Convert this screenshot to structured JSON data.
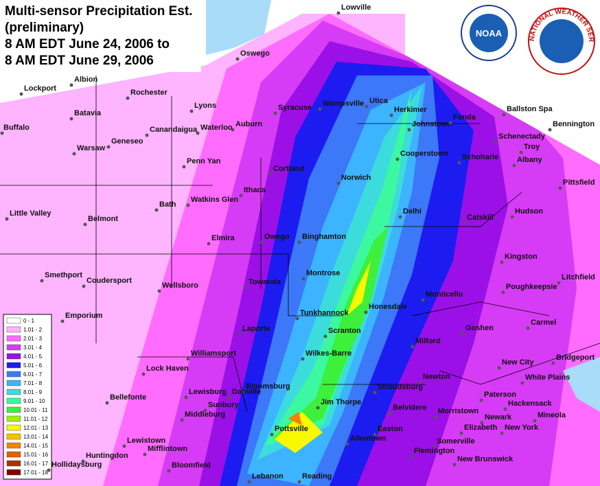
{
  "title": [
    "Multi-sensor Precipitation Est.",
    "(preliminary)",
    "8 AM EDT June 24, 2006 to",
    "8 AM EDT June 29, 2006"
  ],
  "logos": {
    "noaa": "NOAA",
    "nws": "NATIONAL WEATHER SERVICE"
  },
  "legend": [
    {
      "label": "0 - 1",
      "color": "#ffffff"
    },
    {
      "label": "1.01 - 2",
      "color": "#ffb4ff"
    },
    {
      "label": "2.01 - 3",
      "color": "#ff6cff"
    },
    {
      "label": "3.01 - 4",
      "color": "#d63cf6"
    },
    {
      "label": "4.01 - 5",
      "color": "#9a10e6"
    },
    {
      "label": "5.01 - 6",
      "color": "#1c1cf0"
    },
    {
      "label": "6.01 - 7",
      "color": "#3c78f8"
    },
    {
      "label": "7.01 - 8",
      "color": "#3cb4ff"
    },
    {
      "label": "8.01 - 9",
      "color": "#3cdcdc"
    },
    {
      "label": "9.01 - 10",
      "color": "#3cf8a0"
    },
    {
      "label": "10.01 - 11",
      "color": "#3cf03c"
    },
    {
      "label": "11.01 - 12",
      "color": "#a0f000"
    },
    {
      "label": "12.01 - 13",
      "color": "#f8f800"
    },
    {
      "label": "13.01 - 14",
      "color": "#f8c000"
    },
    {
      "label": "14.01 - 15",
      "color": "#f88000"
    },
    {
      "label": "15.01 - 16",
      "color": "#e06000"
    },
    {
      "label": "16.01 - 17",
      "color": "#b03000"
    },
    {
      "label": "17.01 - 18",
      "color": "#800000"
    }
  ],
  "cities": [
    "Lowville",
    "Oswego",
    "Albion",
    "Lockport",
    "Rochester",
    "Syracuse",
    "Wampsville",
    "Utica",
    "Herkimer",
    "Johnstown",
    "Fonda",
    "Ballston Spa",
    "Bennington",
    "Lyons",
    "Batavia",
    "Buffalo",
    "Canandaigua",
    "Waterloo",
    "Auburn",
    "Geneseo",
    "Warsaw",
    "Schenectady",
    "Troy",
    "Albany",
    "Cooperstown",
    "Schoharie",
    "Cortland",
    "Penn Yan",
    "Norwich",
    "Pittsfield",
    "Ithaca",
    "Bath",
    "Watkins Glen",
    "Little Valley",
    "Belmont",
    "Delhi",
    "Hudson",
    "Catskill",
    "Elmira",
    "Owego",
    "Binghamton",
    "Kingston",
    "Smethport",
    "Coudersport",
    "Wellsboro",
    "Towanda",
    "Montrose",
    "Litchfield",
    "Poughkeepsie",
    "Monticello",
    "Honesdale",
    "Tunkhannock",
    "Emporium",
    "Carmel",
    "Laporte",
    "Scranton",
    "Goshen",
    "Milford",
    "Williamsport",
    "Wilkes-Barre",
    "Bridgeport",
    "New City",
    "Lock Haven",
    "White Plains",
    "Newton",
    "Bloomsburg",
    "Stroudsburg",
    "Lewisburg",
    "Danville",
    "Paterson",
    "Hackensack",
    "Sunbury",
    "Bellefonte",
    "Jim Thorpe",
    "Belvidere",
    "Morristown",
    "Middleburg",
    "Mineola",
    "Newark",
    "New York",
    "Elizabeth",
    "Easton",
    "Pottsville",
    "Lewistown",
    "Mifflintown",
    "Somerville",
    "Allentown",
    "Flemington",
    "Huntingdon",
    "New Brunswick",
    "Hollidaysburg",
    "Bloomfield",
    "Lebanon",
    "Reading"
  ]
}
